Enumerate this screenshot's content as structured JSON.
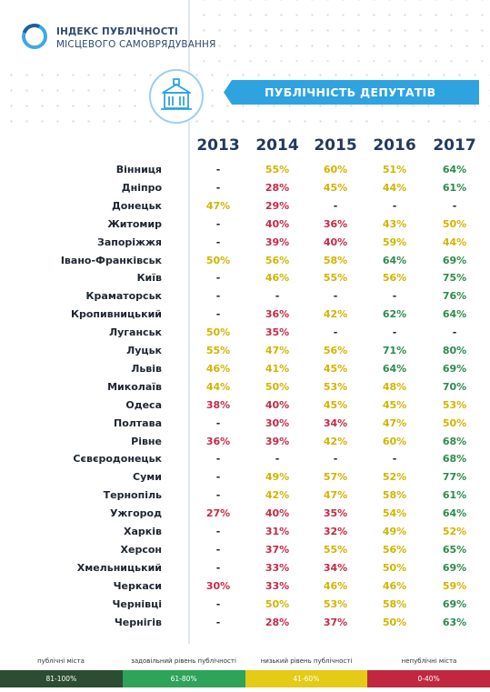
{
  "logo": {
    "line1": "ІНДЕКС ПУБЛІЧНОСТІ",
    "line2": "МІСЦЕВОГО САМОВРЯДУВАННЯ",
    "icon": "ring-logo-icon"
  },
  "banner": {
    "title": "ПУБЛІЧНІСТЬ ДЕПУТАТІВ",
    "icon": "city-hall-icon"
  },
  "years": [
    "2013",
    "2014",
    "2015",
    "2016",
    "2017"
  ],
  "colors": {
    "public": "#2e8b4e",
    "satisfactory": "#2e8b4e",
    "low": "#d2b400",
    "nonpublic": "#c62a46",
    "dash": "#1e2530"
  },
  "rows": [
    {
      "city": "Вінниця",
      "vals": [
        "-",
        "55%",
        "60%",
        "51%",
        "64%"
      ]
    },
    {
      "city": "Дніпро",
      "vals": [
        "-",
        "28%",
        "45%",
        "44%",
        "61%"
      ]
    },
    {
      "city": "Донецьк",
      "vals": [
        "47%",
        "29%",
        "-",
        "-",
        "-"
      ]
    },
    {
      "city": "Житомир",
      "vals": [
        "-",
        "40%",
        "36%",
        "43%",
        "50%"
      ]
    },
    {
      "city": "Запоріжжя",
      "vals": [
        "-",
        "39%",
        "40%",
        "59%",
        "44%"
      ]
    },
    {
      "city": "Івано-Франківськ",
      "vals": [
        "50%",
        "56%",
        "58%",
        "64%",
        "69%"
      ]
    },
    {
      "city": "Київ",
      "vals": [
        "-",
        "46%",
        "55%",
        "56%",
        "75%"
      ]
    },
    {
      "city": "Краматорськ",
      "vals": [
        "-",
        "-",
        "-",
        "-",
        "76%"
      ]
    },
    {
      "city": "Кропивницький",
      "vals": [
        "-",
        "36%",
        "42%",
        "62%",
        "64%"
      ]
    },
    {
      "city": "Луганськ",
      "vals": [
        "50%",
        "35%",
        "-",
        "-",
        "-"
      ]
    },
    {
      "city": "Луцьк",
      "vals": [
        "55%",
        "47%",
        "56%",
        "71%",
        "80%"
      ]
    },
    {
      "city": "Львів",
      "vals": [
        "46%",
        "41%",
        "45%",
        "64%",
        "69%"
      ]
    },
    {
      "city": "Миколаїв",
      "vals": [
        "44%",
        "50%",
        "53%",
        "48%",
        "70%"
      ]
    },
    {
      "city": "Одеса",
      "vals": [
        "38%",
        "40%",
        "45%",
        "45%",
        "53%"
      ]
    },
    {
      "city": "Полтава",
      "vals": [
        "-",
        "30%",
        "34%",
        "47%",
        "50%"
      ]
    },
    {
      "city": "Рівне",
      "vals": [
        "36%",
        "39%",
        "42%",
        "60%",
        "68%"
      ]
    },
    {
      "city": "Сєвєродонецьк",
      "vals": [
        "-",
        "-",
        "-",
        "-",
        "68%"
      ]
    },
    {
      "city": "Суми",
      "vals": [
        "-",
        "49%",
        "57%",
        "52%",
        "77%"
      ]
    },
    {
      "city": "Тернопіль",
      "vals": [
        "-",
        "42%",
        "47%",
        "58%",
        "61%"
      ]
    },
    {
      "city": "Ужгород",
      "vals": [
        "27%",
        "40%",
        "35%",
        "54%",
        "64%"
      ]
    },
    {
      "city": "Харків",
      "vals": [
        "-",
        "31%",
        "32%",
        "49%",
        "52%"
      ]
    },
    {
      "city": "Херсон",
      "vals": [
        "-",
        "37%",
        "55%",
        "56%",
        "65%"
      ]
    },
    {
      "city": "Хмельницький",
      "vals": [
        "-",
        "33%",
        "34%",
        "50%",
        "69%"
      ]
    },
    {
      "city": "Черкаси",
      "vals": [
        "30%",
        "33%",
        "46%",
        "46%",
        "59%"
      ]
    },
    {
      "city": "Чернівці",
      "vals": [
        "-",
        "50%",
        "53%",
        "58%",
        "69%"
      ]
    },
    {
      "city": "Чернігів",
      "vals": [
        "-",
        "28%",
        "37%",
        "50%",
        "63%"
      ]
    }
  ],
  "legend": [
    {
      "label": "публічні міста",
      "range": "81-100%",
      "color": "#2c4d32"
    },
    {
      "label": "задовільний рівень публічності",
      "range": "61-80%",
      "color": "#2ea35a"
    },
    {
      "label": "низький рівень публічності",
      "range": "41-60%",
      "color": "#e3cb16"
    },
    {
      "label": "непублічні міста",
      "range": "0-40%",
      "color": "#c0283f"
    }
  ]
}
